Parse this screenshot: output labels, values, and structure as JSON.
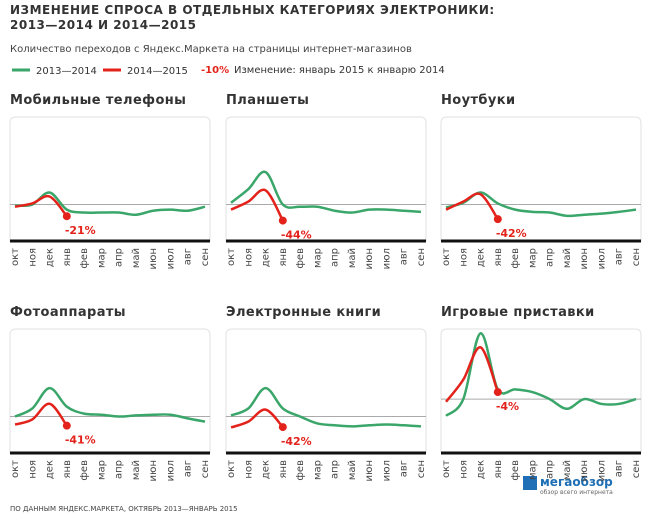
{
  "title": [
    "ИЗМЕНЕНИЕ СПРОСА В ОТДЕЛЬНЫХ КАТЕГОРИЯХ ЭЛЕКТРОНИКИ:",
    "2013—2014 И 2014—2015"
  ],
  "subtitle": "Количество переходов с Яндекс.Маркета на страницы интернет-магазинов",
  "legend": [
    {
      "name": "2013—2014",
      "color": "#3aa66a"
    },
    {
      "name": "2014—2015",
      "color": "#e3231b"
    }
  ],
  "legend_note": {
    "sample": "-10%",
    "text": "Изменение: январь 2015 к январю 2014"
  },
  "source": "ПО ДАННЫМ ЯНДЕКС.МАРКЕТА, ОКТЯБРЬ 2013—ЯНВАРЬ 2015",
  "logo": {
    "name": "мегаобзор",
    "tagline": "обзор всего интернета"
  },
  "chart_data": [
    {
      "type": "line",
      "title": "Мобильные телефоны",
      "categories": [
        "окт",
        "ноя",
        "дек",
        "янв",
        "фев",
        "мар",
        "апр",
        "май",
        "июн",
        "июл",
        "авг",
        "сен"
      ],
      "series": [
        {
          "color": "#3aa66a",
          "values": [
            97,
            100,
            133,
            86,
            78,
            78,
            78,
            72,
            83,
            86,
            83,
            94
          ]
        },
        {
          "color": "#e3231b",
          "values": [
            94,
            103,
            122,
            68,
            null,
            null,
            null,
            null,
            null,
            null,
            null,
            null
          ]
        }
      ],
      "annotation": "-21%",
      "hline": 100,
      "ylim": [
        0,
        340
      ]
    },
    {
      "type": "line",
      "title": "Планшеты",
      "categories": [
        "окт",
        "ноя",
        "дек",
        "янв",
        "фев",
        "мар",
        "апр",
        "май",
        "июн",
        "июл",
        "авг",
        "сен"
      ],
      "series": [
        {
          "color": "#3aa66a",
          "values": [
            105,
            142,
            189,
            100,
            94,
            94,
            83,
            78,
            86,
            86,
            83,
            80
          ]
        },
        {
          "color": "#e3231b",
          "values": [
            86,
            108,
            139,
            56,
            null,
            null,
            null,
            null,
            null,
            null,
            null,
            null
          ]
        }
      ],
      "annotation": "-44%",
      "hline": 100,
      "ylim": [
        0,
        340
      ]
    },
    {
      "type": "line",
      "title": "Ноутбуки",
      "categories": [
        "окт",
        "ноя",
        "дек",
        "янв",
        "фев",
        "мар",
        "апр",
        "май",
        "июн",
        "июл",
        "авг",
        "сен"
      ],
      "series": [
        {
          "color": "#3aa66a",
          "values": [
            92,
            105,
            133,
            103,
            86,
            80,
            78,
            69,
            72,
            75,
            80,
            86
          ]
        },
        {
          "color": "#e3231b",
          "values": [
            86,
            108,
            128,
            60,
            null,
            null,
            null,
            null,
            null,
            null,
            null,
            null
          ]
        }
      ],
      "annotation": "-42%",
      "hline": 100,
      "ylim": [
        0,
        340
      ]
    },
    {
      "type": "line",
      "title": "Фотоаппараты",
      "categories": [
        "окт",
        "ноя",
        "дек",
        "янв",
        "фев",
        "мар",
        "апр",
        "май",
        "июн",
        "июл",
        "авг",
        "сен"
      ],
      "series": [
        {
          "color": "#3aa66a",
          "values": [
            100,
            122,
            178,
            127,
            108,
            105,
            100,
            103,
            105,
            105,
            95,
            86
          ]
        },
        {
          "color": "#e3231b",
          "values": [
            78,
            92,
            135,
            75,
            null,
            null,
            null,
            null,
            null,
            null,
            null,
            null
          ]
        }
      ],
      "annotation": "-41%",
      "hline": 100,
      "ylim": [
        0,
        340
      ]
    },
    {
      "type": "line",
      "title": "Электронные книги",
      "categories": [
        "окт",
        "ноя",
        "дек",
        "янв",
        "фев",
        "мар",
        "апр",
        "май",
        "июн",
        "июл",
        "авг",
        "сен"
      ],
      "series": [
        {
          "color": "#3aa66a",
          "values": [
            103,
            122,
            178,
            122,
            100,
            81,
            76,
            73,
            76,
            78,
            76,
            73
          ]
        },
        {
          "color": "#e3231b",
          "values": [
            70,
            86,
            119,
            71,
            null,
            null,
            null,
            null,
            null,
            null,
            null,
            null
          ]
        }
      ],
      "annotation": "-42%",
      "hline": 100,
      "ylim": [
        0,
        340
      ]
    },
    {
      "type": "line",
      "title": "Игровые приставки",
      "categories": [
        "окт",
        "ноя",
        "дек",
        "янв",
        "фев",
        "мар",
        "апр",
        "май",
        "июн",
        "июл",
        "авг",
        "сен"
      ],
      "series": [
        {
          "color": "#3aa66a",
          "values": [
            69,
            100,
            222,
            118,
            118,
            113,
            100,
            82,
            100,
            91,
            91,
            100
          ]
        },
        {
          "color": "#e3231b",
          "values": [
            95,
            136,
            196,
            113,
            null,
            null,
            null,
            null,
            null,
            null,
            null,
            null
          ]
        }
      ],
      "annotation": "-4%",
      "hline": 100,
      "ylim": [
        0,
        230
      ]
    }
  ]
}
